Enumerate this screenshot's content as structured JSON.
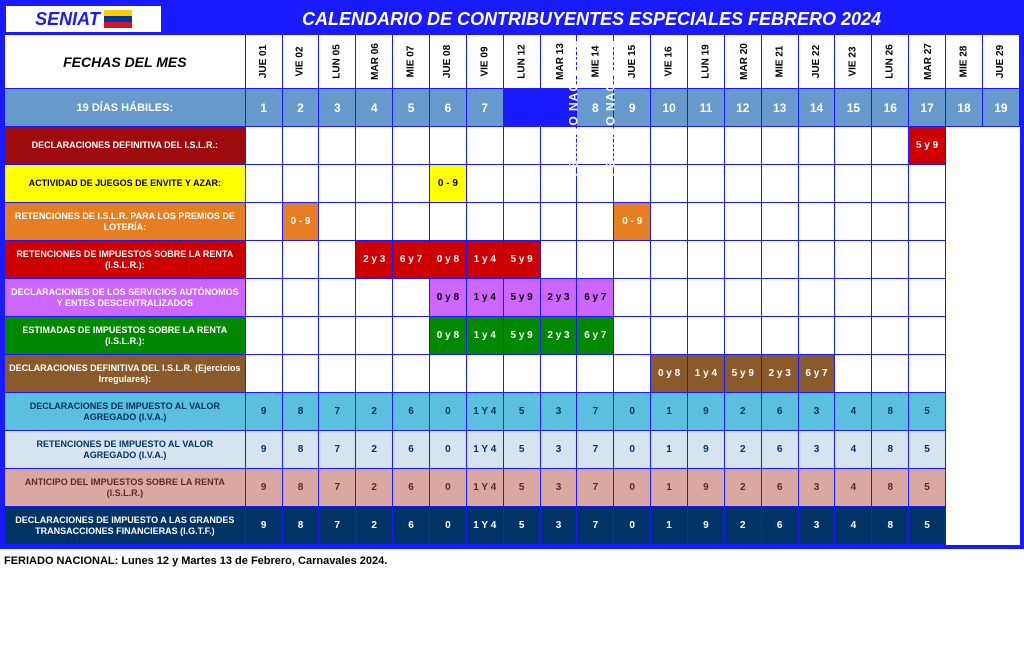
{
  "logo_text": "SENIAT",
  "flag_colors": [
    "#ffcc00",
    "#0033a0",
    "#cf142b"
  ],
  "title": "CALENDARIO DE CONTRIBUYENTES ESPECIALES FEBRERO 2024",
  "fechas_label": "FECHAS DEL MES",
  "dates": [
    "JUE 01",
    "VIE  02",
    "LUN 05",
    "MAR 06",
    "MIE  07",
    "JUE 08",
    "VIE  09",
    "LUN 12",
    "MAR 13",
    "MIE  14",
    "JUE 15",
    "VIE  16",
    "LUN 19",
    "MAR 20",
    "MIE  21",
    "JUE 22",
    "VIE  23",
    "LUN 26",
    "MAR 27",
    "MIE  28",
    "JUE 29"
  ],
  "holiday_cols": [
    7,
    8
  ],
  "holiday_text": "FERIADO NACIONAL",
  "dias_habiles": {
    "label": "19 DÍAS HÁBILES:",
    "values": [
      "1",
      "2",
      "3",
      "4",
      "5",
      "6",
      "7",
      "",
      "",
      "8",
      "9",
      "10",
      "11",
      "12",
      "13",
      "14",
      "15",
      "16",
      "17",
      "18",
      "19"
    ]
  },
  "rows": [
    {
      "label": "DECLARACIONES DEFINITIVA DEL I.S.L.R.:",
      "label_bg": "#9e0b0f",
      "label_fg": "#ffffff",
      "cells": [
        {
          "t": ""
        },
        {
          "t": ""
        },
        {
          "t": ""
        },
        {
          "t": ""
        },
        {
          "t": ""
        },
        {
          "t": ""
        },
        {
          "t": ""
        },
        null,
        null,
        {
          "t": ""
        },
        {
          "t": ""
        },
        {
          "t": ""
        },
        {
          "t": ""
        },
        {
          "t": ""
        },
        {
          "t": ""
        },
        {
          "t": ""
        },
        {
          "t": ""
        },
        {
          "t": ""
        },
        {
          "t": ""
        },
        {
          "t": ""
        },
        {
          "t": "5 y 9",
          "bg": "#cc0000",
          "fg": "#ffffff"
        }
      ]
    },
    {
      "label": "ACTIVIDAD DE JUEGOS DE ENVITE Y AZAR:",
      "label_bg": "#ffff00",
      "label_fg": "#000000",
      "cells": [
        {
          "t": ""
        },
        {
          "t": ""
        },
        {
          "t": ""
        },
        {
          "t": ""
        },
        {
          "t": ""
        },
        {
          "t": "0 - 9",
          "bg": "#ffff00",
          "fg": "#000000"
        },
        {
          "t": ""
        },
        null,
        null,
        {
          "t": ""
        },
        {
          "t": ""
        },
        {
          "t": ""
        },
        {
          "t": ""
        },
        {
          "t": ""
        },
        {
          "t": ""
        },
        {
          "t": ""
        },
        {
          "t": ""
        },
        {
          "t": ""
        },
        {
          "t": ""
        },
        {
          "t": ""
        },
        {
          "t": ""
        }
      ]
    },
    {
      "label": "RETENCIONES DE I.S.L.R. PARA LOS PREMIOS DE LOTERÍA:",
      "label_bg": "#e67e22",
      "label_fg": "#ffffff",
      "cells": [
        {
          "t": ""
        },
        {
          "t": "0 - 9",
          "bg": "#e67e22",
          "fg": "#ffffff"
        },
        {
          "t": ""
        },
        {
          "t": ""
        },
        {
          "t": ""
        },
        {
          "t": ""
        },
        {
          "t": ""
        },
        null,
        null,
        {
          "t": ""
        },
        {
          "t": ""
        },
        {
          "t": ""
        },
        {
          "t": "0 - 9",
          "bg": "#e67e22",
          "fg": "#ffffff"
        },
        {
          "t": ""
        },
        {
          "t": ""
        },
        {
          "t": ""
        },
        {
          "t": ""
        },
        {
          "t": ""
        },
        {
          "t": ""
        },
        {
          "t": ""
        },
        {
          "t": ""
        }
      ]
    },
    {
      "label": "RETENCIONES DE IMPUESTOS SOBRE LA RENTA (I.S.L.R.):",
      "label_bg": "#cc0000",
      "label_fg": "#ffffff",
      "cells": [
        {
          "t": ""
        },
        {
          "t": ""
        },
        {
          "t": ""
        },
        {
          "t": "2 y 3",
          "bg": "#cc0000",
          "fg": "#ffffff"
        },
        {
          "t": "6 y 7",
          "bg": "#cc0000",
          "fg": "#ffffff"
        },
        {
          "t": "0 y 8",
          "bg": "#cc0000",
          "fg": "#ffffff"
        },
        {
          "t": "1 y 4",
          "bg": "#cc0000",
          "fg": "#ffffff"
        },
        null,
        null,
        {
          "t": "5 y 9",
          "bg": "#cc0000",
          "fg": "#ffffff"
        },
        {
          "t": ""
        },
        {
          "t": ""
        },
        {
          "t": ""
        },
        {
          "t": ""
        },
        {
          "t": ""
        },
        {
          "t": ""
        },
        {
          "t": ""
        },
        {
          "t": ""
        },
        {
          "t": ""
        },
        {
          "t": ""
        },
        {
          "t": ""
        }
      ]
    },
    {
      "label": "DECLARACIONES DE LOS SERVICIOS AUTÓNOMOS Y ENTES DESCENTRALIZADOS",
      "label_bg": "#cc66ff",
      "label_fg": "#ffffff",
      "cells": [
        {
          "t": ""
        },
        {
          "t": ""
        },
        {
          "t": ""
        },
        {
          "t": ""
        },
        {
          "t": ""
        },
        {
          "t": "0 y 8",
          "bg": "#cc66ff",
          "fg": "#000000"
        },
        {
          "t": "1 y 4",
          "bg": "#cc66ff",
          "fg": "#000000"
        },
        null,
        null,
        {
          "t": "5 y 9",
          "bg": "#cc66ff",
          "fg": "#000000"
        },
        {
          "t": "2 y 3",
          "bg": "#cc66ff",
          "fg": "#000000"
        },
        {
          "t": "6 y 7",
          "bg": "#cc66ff",
          "fg": "#000000"
        },
        {
          "t": ""
        },
        {
          "t": ""
        },
        {
          "t": ""
        },
        {
          "t": ""
        },
        {
          "t": ""
        },
        {
          "t": ""
        },
        {
          "t": ""
        },
        {
          "t": ""
        },
        {
          "t": ""
        }
      ]
    },
    {
      "label": "ESTIMADAS DE IMPUESTOS SOBRE LA RENTA (I.S.L.R.):",
      "label_bg": "#008800",
      "label_fg": "#ffffff",
      "cells": [
        {
          "t": ""
        },
        {
          "t": ""
        },
        {
          "t": ""
        },
        {
          "t": ""
        },
        {
          "t": ""
        },
        {
          "t": "0 y 8",
          "bg": "#008800",
          "fg": "#ffffff"
        },
        {
          "t": "1 y 4",
          "bg": "#008800",
          "fg": "#ffffff"
        },
        null,
        null,
        {
          "t": "5 y 9",
          "bg": "#008800",
          "fg": "#ffffff"
        },
        {
          "t": "2 y 3",
          "bg": "#008800",
          "fg": "#ffffff"
        },
        {
          "t": "6 y 7",
          "bg": "#008800",
          "fg": "#ffffff"
        },
        {
          "t": ""
        },
        {
          "t": ""
        },
        {
          "t": ""
        },
        {
          "t": ""
        },
        {
          "t": ""
        },
        {
          "t": ""
        },
        {
          "t": ""
        },
        {
          "t": ""
        },
        {
          "t": ""
        }
      ]
    },
    {
      "label": "DECLARACIONES DEFINITIVA DEL I.S.L.R. (Ejercicios Irregulares):",
      "label_bg": "#8b5a2b",
      "label_fg": "#ffffff",
      "cells": [
        {
          "t": ""
        },
        {
          "t": ""
        },
        {
          "t": ""
        },
        {
          "t": ""
        },
        {
          "t": ""
        },
        {
          "t": ""
        },
        {
          "t": ""
        },
        null,
        null,
        {
          "t": ""
        },
        {
          "t": ""
        },
        {
          "t": ""
        },
        {
          "t": ""
        },
        {
          "t": "0 y 8",
          "bg": "#8b5a2b",
          "fg": "#ffffff"
        },
        {
          "t": "1 y 4",
          "bg": "#8b5a2b",
          "fg": "#ffffff"
        },
        {
          "t": "5 y 9",
          "bg": "#8b5a2b",
          "fg": "#ffffff"
        },
        {
          "t": "2 y 3",
          "bg": "#8b5a2b",
          "fg": "#ffffff"
        },
        {
          "t": "6 y 7",
          "bg": "#8b5a2b",
          "fg": "#ffffff"
        },
        {
          "t": ""
        },
        {
          "t": ""
        },
        {
          "t": ""
        }
      ]
    },
    {
      "label": "DECLARACIONES DE IMPUESTO AL VALOR AGREGADO (I.V.A.)",
      "label_bg": "#5bc0de",
      "label_fg": "#003366",
      "cells": [
        {
          "t": "9",
          "bg": "#5bc0de",
          "fg": "#003366"
        },
        {
          "t": "8",
          "bg": "#5bc0de",
          "fg": "#003366"
        },
        {
          "t": "7",
          "bg": "#5bc0de",
          "fg": "#003366"
        },
        {
          "t": "2",
          "bg": "#5bc0de",
          "fg": "#003366"
        },
        {
          "t": "6",
          "bg": "#5bc0de",
          "fg": "#003366"
        },
        {
          "t": "0",
          "bg": "#5bc0de",
          "fg": "#003366"
        },
        {
          "t": "1 Y 4",
          "bg": "#5bc0de",
          "fg": "#003366"
        },
        null,
        null,
        {
          "t": "5",
          "bg": "#5bc0de",
          "fg": "#003366"
        },
        {
          "t": "3",
          "bg": "#5bc0de",
          "fg": "#003366"
        },
        {
          "t": "7",
          "bg": "#5bc0de",
          "fg": "#003366"
        },
        {
          "t": "0",
          "bg": "#5bc0de",
          "fg": "#003366"
        },
        {
          "t": "1",
          "bg": "#5bc0de",
          "fg": "#003366"
        },
        {
          "t": "9",
          "bg": "#5bc0de",
          "fg": "#003366"
        },
        {
          "t": "2",
          "bg": "#5bc0de",
          "fg": "#003366"
        },
        {
          "t": "6",
          "bg": "#5bc0de",
          "fg": "#003366"
        },
        {
          "t": "3",
          "bg": "#5bc0de",
          "fg": "#003366"
        },
        {
          "t": "4",
          "bg": "#5bc0de",
          "fg": "#003366"
        },
        {
          "t": "8",
          "bg": "#5bc0de",
          "fg": "#003366"
        },
        {
          "t": "5",
          "bg": "#5bc0de",
          "fg": "#003366"
        }
      ]
    },
    {
      "label": "RETENCIONES DE IMPUESTO AL VALOR AGREGADO (I.V.A.)",
      "label_bg": "#d6e4f0",
      "label_fg": "#003366",
      "cells": [
        {
          "t": "9",
          "bg": "#d6e4f0",
          "fg": "#003366"
        },
        {
          "t": "8",
          "bg": "#d6e4f0",
          "fg": "#003366"
        },
        {
          "t": "7",
          "bg": "#d6e4f0",
          "fg": "#003366"
        },
        {
          "t": "2",
          "bg": "#d6e4f0",
          "fg": "#003366"
        },
        {
          "t": "6",
          "bg": "#d6e4f0",
          "fg": "#003366"
        },
        {
          "t": "0",
          "bg": "#d6e4f0",
          "fg": "#003366"
        },
        {
          "t": "1 Y 4",
          "bg": "#d6e4f0",
          "fg": "#003366"
        },
        null,
        null,
        {
          "t": "5",
          "bg": "#d6e4f0",
          "fg": "#003366"
        },
        {
          "t": "3",
          "bg": "#d6e4f0",
          "fg": "#003366"
        },
        {
          "t": "7",
          "bg": "#d6e4f0",
          "fg": "#003366"
        },
        {
          "t": "0",
          "bg": "#d6e4f0",
          "fg": "#003366"
        },
        {
          "t": "1",
          "bg": "#d6e4f0",
          "fg": "#003366"
        },
        {
          "t": "9",
          "bg": "#d6e4f0",
          "fg": "#003366"
        },
        {
          "t": "2",
          "bg": "#d6e4f0",
          "fg": "#003366"
        },
        {
          "t": "6",
          "bg": "#d6e4f0",
          "fg": "#003366"
        },
        {
          "t": "3",
          "bg": "#d6e4f0",
          "fg": "#003366"
        },
        {
          "t": "4",
          "bg": "#d6e4f0",
          "fg": "#003366"
        },
        {
          "t": "8",
          "bg": "#d6e4f0",
          "fg": "#003366"
        },
        {
          "t": "5",
          "bg": "#d6e4f0",
          "fg": "#003366"
        }
      ]
    },
    {
      "label": "ANTICIPO DEL IMPUESTOS SOBRE LA RENTA (I.S.L.R.)",
      "label_bg": "#d9a8a0",
      "label_fg": "#5c2a2a",
      "cells": [
        {
          "t": "9",
          "bg": "#d9a8a0",
          "fg": "#5c2a2a"
        },
        {
          "t": "8",
          "bg": "#d9a8a0",
          "fg": "#5c2a2a"
        },
        {
          "t": "7",
          "bg": "#d9a8a0",
          "fg": "#5c2a2a"
        },
        {
          "t": "2",
          "bg": "#d9a8a0",
          "fg": "#5c2a2a"
        },
        {
          "t": "6",
          "bg": "#d9a8a0",
          "fg": "#5c2a2a"
        },
        {
          "t": "0",
          "bg": "#d9a8a0",
          "fg": "#5c2a2a"
        },
        {
          "t": "1 Y 4",
          "bg": "#d9a8a0",
          "fg": "#5c2a2a"
        },
        null,
        null,
        {
          "t": "5",
          "bg": "#d9a8a0",
          "fg": "#5c2a2a"
        },
        {
          "t": "3",
          "bg": "#d9a8a0",
          "fg": "#5c2a2a"
        },
        {
          "t": "7",
          "bg": "#d9a8a0",
          "fg": "#5c2a2a"
        },
        {
          "t": "0",
          "bg": "#d9a8a0",
          "fg": "#5c2a2a"
        },
        {
          "t": "1",
          "bg": "#d9a8a0",
          "fg": "#5c2a2a"
        },
        {
          "t": "9",
          "bg": "#d9a8a0",
          "fg": "#5c2a2a"
        },
        {
          "t": "2",
          "bg": "#d9a8a0",
          "fg": "#5c2a2a"
        },
        {
          "t": "6",
          "bg": "#d9a8a0",
          "fg": "#5c2a2a"
        },
        {
          "t": "3",
          "bg": "#d9a8a0",
          "fg": "#5c2a2a"
        },
        {
          "t": "4",
          "bg": "#d9a8a0",
          "fg": "#5c2a2a"
        },
        {
          "t": "8",
          "bg": "#d9a8a0",
          "fg": "#5c2a2a"
        },
        {
          "t": "5",
          "bg": "#d9a8a0",
          "fg": "#5c2a2a"
        }
      ]
    },
    {
      "label": "DECLARACIONES DE IMPUESTO A LAS GRANDES TRANSACCIONES FINANCIERAS (I.G.T.F.)",
      "label_bg": "#003366",
      "label_fg": "#ffffff",
      "cells": [
        {
          "t": "9",
          "bg": "#003366",
          "fg": "#ffffff"
        },
        {
          "t": "8",
          "bg": "#003366",
          "fg": "#ffffff"
        },
        {
          "t": "7",
          "bg": "#003366",
          "fg": "#ffffff"
        },
        {
          "t": "2",
          "bg": "#003366",
          "fg": "#ffffff"
        },
        {
          "t": "6",
          "bg": "#003366",
          "fg": "#ffffff"
        },
        {
          "t": "0",
          "bg": "#003366",
          "fg": "#ffffff"
        },
        {
          "t": "1 Y 4",
          "bg": "#003366",
          "fg": "#ffffff"
        },
        null,
        null,
        {
          "t": "5",
          "bg": "#003366",
          "fg": "#ffffff"
        },
        {
          "t": "3",
          "bg": "#003366",
          "fg": "#ffffff"
        },
        {
          "t": "7",
          "bg": "#003366",
          "fg": "#ffffff"
        },
        {
          "t": "0",
          "bg": "#003366",
          "fg": "#ffffff"
        },
        {
          "t": "1",
          "bg": "#003366",
          "fg": "#ffffff"
        },
        {
          "t": "9",
          "bg": "#003366",
          "fg": "#ffffff"
        },
        {
          "t": "2",
          "bg": "#003366",
          "fg": "#ffffff"
        },
        {
          "t": "6",
          "bg": "#003366",
          "fg": "#ffffff"
        },
        {
          "t": "3",
          "bg": "#003366",
          "fg": "#ffffff"
        },
        {
          "t": "4",
          "bg": "#003366",
          "fg": "#ffffff"
        },
        {
          "t": "8",
          "bg": "#003366",
          "fg": "#ffffff"
        },
        {
          "t": "5",
          "bg": "#003366",
          "fg": "#ffffff"
        }
      ]
    }
  ],
  "footer": "FERIADO NACIONAL: Lunes 12 y Martes 13 de Febrero, Carnavales 2024."
}
